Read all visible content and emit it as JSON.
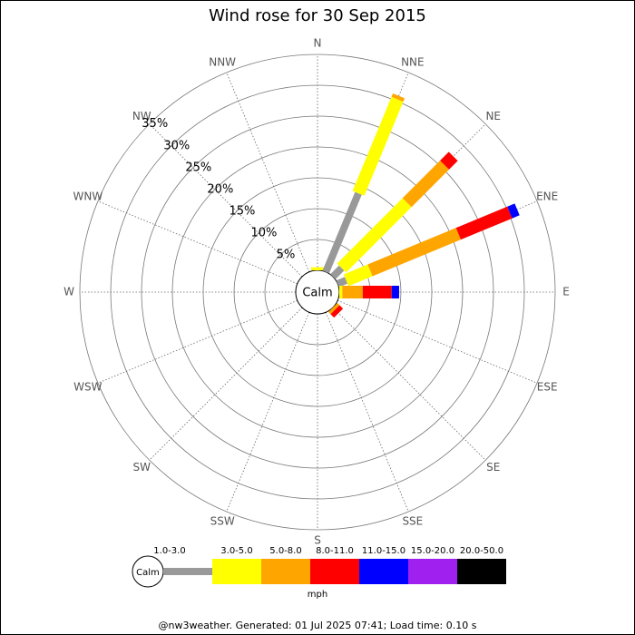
{
  "chart_data": {
    "type": "windrose",
    "title": "Wind rose for 30 Sep 2015",
    "calm_label": "Calm",
    "unit": "mph",
    "footer": "@nw3weather. Generated: 01 Jul 2025 07:41; Load time: 0.10 s",
    "categories": [
      "N",
      "NNE",
      "NE",
      "ENE",
      "E",
      "ESE",
      "SE",
      "SSE",
      "S",
      "SSW",
      "SW",
      "WSW",
      "W",
      "WNW",
      "NW",
      "NNW"
    ],
    "ylim": [
      0,
      35
    ],
    "yticks": [
      {
        "value": 5,
        "label": "5%"
      },
      {
        "value": 10,
        "label": "10%"
      },
      {
        "value": 15,
        "label": "15%"
      },
      {
        "value": 20,
        "label": "20%"
      },
      {
        "value": 25,
        "label": "25%"
      },
      {
        "value": 30,
        "label": "30%"
      },
      {
        "value": 35,
        "label": "35%"
      }
    ],
    "series": [
      {
        "name": "1.0-3.0",
        "color": "#999999",
        "values": [
          0,
          13.8,
          2,
          1.5,
          0,
          0,
          0,
          0,
          0,
          0,
          0,
          0,
          0,
          0,
          0,
          0
        ]
      },
      {
        "name": "3.0-5.0",
        "color": "#ffff00",
        "values": [
          0.5,
          16.5,
          15,
          4.2,
          0.5,
          0,
          0,
          0,
          0,
          0,
          0,
          0,
          0,
          0,
          0,
          0
        ]
      },
      {
        "name": "5.0-8.0",
        "color": "#ffa500",
        "values": [
          0,
          0.6,
          8.6,
          15.5,
          3.3,
          0,
          0.5,
          0,
          0,
          0,
          0,
          0,
          0,
          0,
          0,
          0
        ]
      },
      {
        "name": "8.0-11.0",
        "color": "#ff0000",
        "values": [
          0,
          0,
          2,
          9,
          4.7,
          0,
          0.8,
          0,
          0,
          0,
          0,
          0,
          0,
          0,
          0,
          0
        ]
      },
      {
        "name": "11.0-15.0",
        "color": "#0000ff",
        "values": [
          0,
          0,
          0,
          1.3,
          1.2,
          0,
          0,
          0,
          0,
          0,
          0,
          0,
          0,
          0,
          0,
          0
        ]
      },
      {
        "name": "15.0-20.0",
        "color": "#a020f0",
        "values": [
          0,
          0,
          0,
          0,
          0,
          0,
          0,
          0,
          0,
          0,
          0,
          0,
          0,
          0,
          0,
          0
        ]
      },
      {
        "name": "20.0-50.0",
        "color": "#000000",
        "values": [
          0,
          0,
          0,
          0,
          0,
          0,
          0,
          0,
          0,
          0,
          0,
          0,
          0,
          0,
          0,
          0
        ]
      }
    ]
  }
}
